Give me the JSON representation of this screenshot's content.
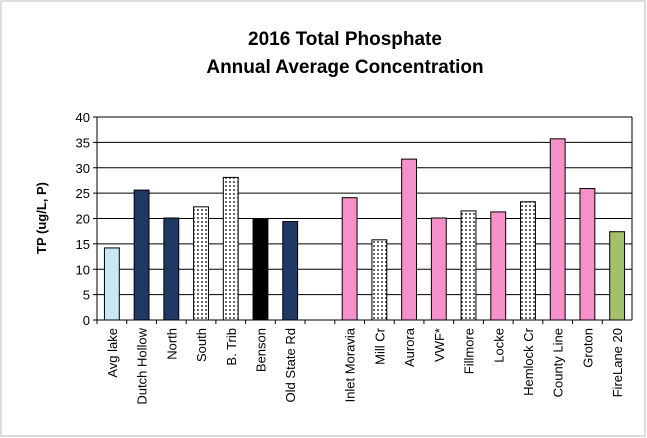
{
  "chart_data": {
    "type": "bar",
    "title": [
      "2016 Total Phosphate",
      "Annual Average Concentration"
    ],
    "y_label": "TP (ug/L, P)",
    "categories": [
      "Avg lake",
      "Dutch Hollow",
      "North",
      "South",
      "B. Trib",
      "Benson",
      "Old State Rd",
      null,
      "Inlet Moravia",
      "Mill Cr",
      "Aurora",
      "VWF*",
      "Fillmore",
      "Locke",
      "Hemlock Cr",
      "County Line",
      "Groton",
      "FireLane 20"
    ],
    "values": [
      14.2,
      25.6,
      20.1,
      22.3,
      28.1,
      19.9,
      19.4,
      null,
      24.1,
      15.8,
      31.7,
      20.1,
      21.5,
      21.3,
      23.3,
      35.7,
      25.9,
      17.4
    ],
    "colors": [
      "#c9e8f2",
      "#1f3864",
      "#1f3864",
      "#ffffff",
      "#ffffff",
      "#000000",
      "#1f3864",
      null,
      "#f590c8",
      "#ffffff",
      "#f590c8",
      "#f590c8",
      "#ffffff",
      "#f590c8",
      "#ffffff",
      "#f590c8",
      "#f590c8",
      "#a3c06a"
    ],
    "patterns": [
      "solid",
      "solid",
      "solid",
      "dots",
      "dots",
      "solid",
      "solid",
      null,
      "solid",
      "dots",
      "solid",
      "solid",
      "dots",
      "solid",
      "dots",
      "solid",
      "solid",
      "solid"
    ],
    "ylim": [
      0,
      40
    ],
    "yticks": [
      0,
      5,
      10,
      15,
      20,
      25,
      30,
      35,
      40
    ],
    "grid": true
  }
}
